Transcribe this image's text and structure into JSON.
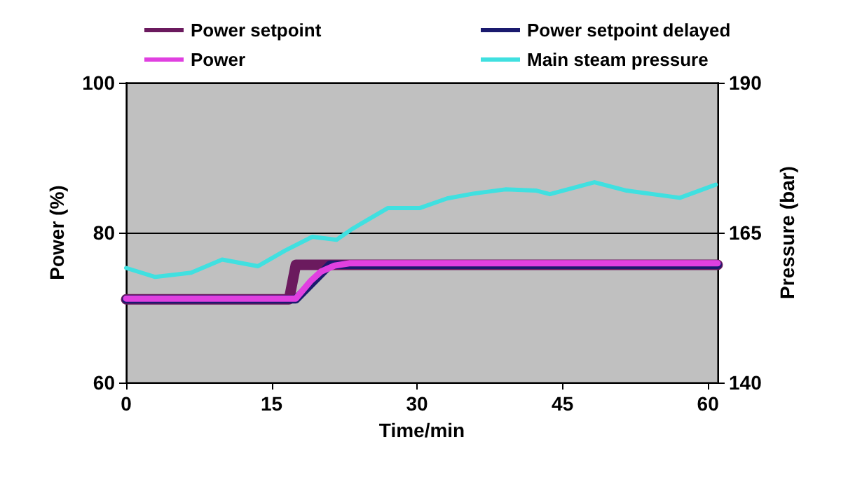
{
  "chart_data": {
    "type": "line",
    "xlabel": "Time/min",
    "ylabel": "Power (%)",
    "y2label": "Pressure (bar)",
    "xlim": [
      0,
      61
    ],
    "xticks": [
      0,
      15,
      30,
      45,
      60
    ],
    "ylim": [
      60,
      100
    ],
    "yticks": [
      60,
      80,
      100
    ],
    "y2lim": [
      140,
      190
    ],
    "y2ticks": [
      140,
      165,
      190
    ],
    "grid": "y",
    "legend": "top",
    "marker": "none",
    "line_style": "solid",
    "series": [
      {
        "name": "Power setpoint",
        "color": "#6b1a5e",
        "x": [
          0,
          16.8,
          17.5,
          61
        ],
        "values": [
          71.1,
          71.1,
          75.7,
          75.7
        ]
      },
      {
        "name": "Power setpoint delayed",
        "color": "#1a1a6e",
        "x": [
          0,
          17.5,
          21,
          61
        ],
        "values": [
          71.1,
          71.1,
          75.7,
          75.7
        ]
      },
      {
        "name": "Power",
        "color": "#e040e0",
        "x": [
          0,
          17.5,
          19,
          20.1,
          21.5,
          23,
          61
        ],
        "values": [
          71.2,
          71.2,
          73.5,
          74.8,
          75.6,
          75.9,
          75.9
        ]
      },
      {
        "name": "Main steam pressure",
        "color": "#40e0e0",
        "axis": "y2",
        "x": [
          0,
          3,
          6.7,
          9.9,
          13.6,
          16.4,
          19.2,
          21.7,
          23.3,
          27,
          30.3,
          33.1,
          35.8,
          39.1,
          42.3,
          43.7,
          48.3,
          51.6,
          57.1,
          60.8
        ],
        "values": [
          159.1,
          157.6,
          158.3,
          160.5,
          159.4,
          162,
          164.3,
          163.8,
          165.6,
          169.1,
          169.1,
          170.7,
          171.5,
          172.2,
          172,
          171.4,
          173.4,
          172,
          170.8,
          173
        ]
      }
    ]
  }
}
